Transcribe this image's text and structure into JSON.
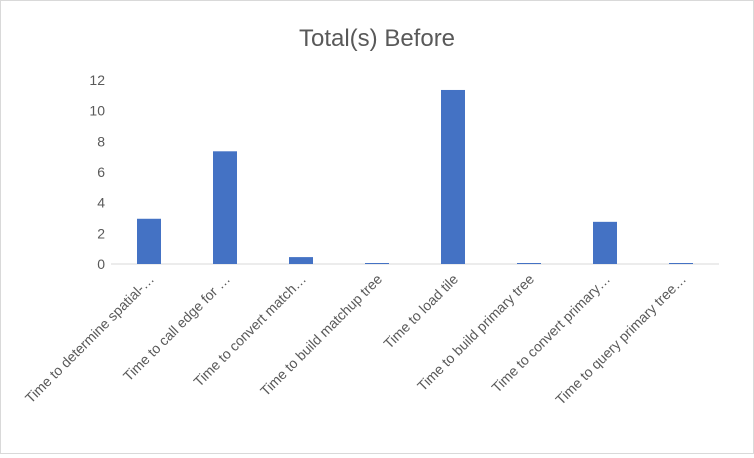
{
  "chart_data": {
    "type": "bar",
    "title": "Total(s) Before",
    "categories": [
      "Time to determine spatial-…",
      "Time to call edge for …",
      "Time to convert match…",
      "Time to build matchup tree",
      "Time to load tile",
      "Time to build primary tree",
      "Time to convert primary…",
      "Time to query primary tree…"
    ],
    "values": [
      2.95,
      7.35,
      0.45,
      0.02,
      11.35,
      0.02,
      2.75,
      0.02
    ],
    "xlabel": "",
    "ylabel": "",
    "ylim": [
      0,
      12
    ],
    "yticks": [
      0,
      2,
      4,
      6,
      8,
      10,
      12
    ],
    "grid": false,
    "legend": "none",
    "colors": {
      "bar": "#4472c4",
      "axis": "#d9d9d9",
      "text": "#595959"
    }
  }
}
